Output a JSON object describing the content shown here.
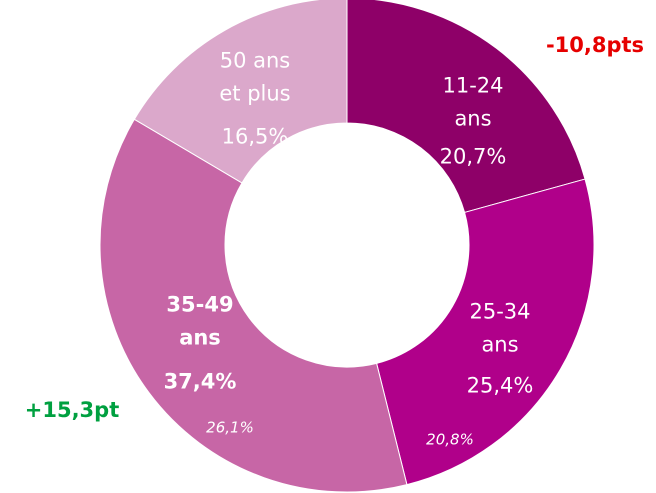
{
  "chart_data": {
    "type": "donut",
    "categories": [
      "11-24 ans",
      "25-34 ans",
      "35-49 ans",
      "50 ans et plus"
    ],
    "values": [
      20.7,
      25.4,
      37.4,
      16.5
    ],
    "value_labels": [
      "20,7%",
      "25,4%",
      "37,4%",
      "16,5%"
    ],
    "colors": [
      "#8e0068",
      "#b0008a",
      "#c766a6",
      "#dba8cb"
    ],
    "previous_values": [
      null,
      20.8,
      26.1,
      null
    ],
    "previous_value_labels": [
      null,
      "20,8%",
      "26,1%",
      null
    ],
    "annotations": [
      {
        "text": "-10,8pts",
        "color": "#e60000"
      },
      {
        "text": "+15,3pt",
        "color": "#00a040"
      }
    ]
  }
}
